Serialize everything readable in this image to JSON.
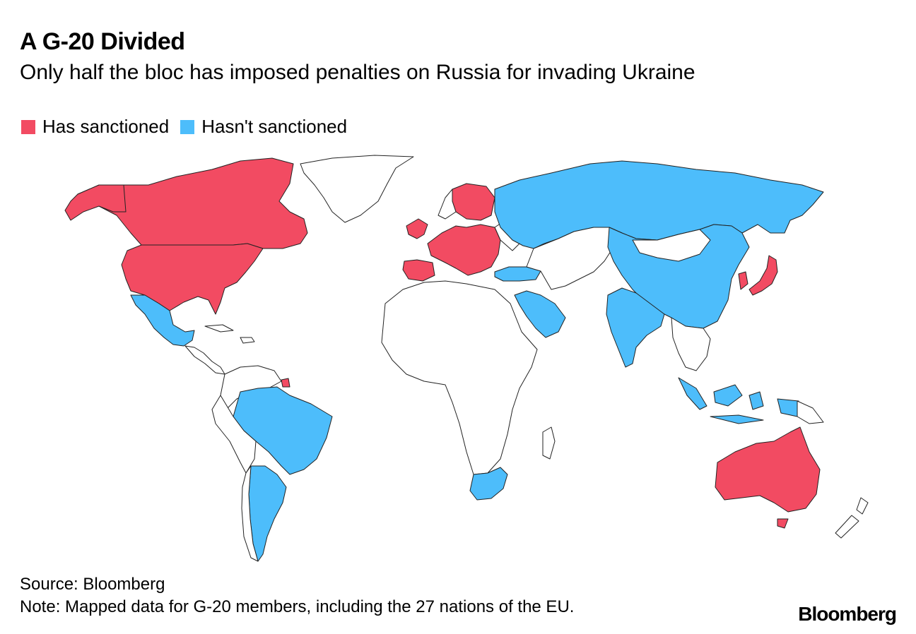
{
  "header": {
    "title": "A G-20 Divided",
    "subtitle": "Only half the bloc has imposed penalties on Russia for invading Ukraine"
  },
  "legend": [
    {
      "label": "Has sanctioned",
      "color": "#f24b62"
    },
    {
      "label": "Hasn't sanctioned",
      "color": "#4dbdfb"
    }
  ],
  "map": {
    "other_fill": "#ffffff",
    "border_color": "#222222",
    "sanctioned": [
      "Canada",
      "United States",
      "United Kingdom",
      "France",
      "Germany",
      "Italy",
      "Spain",
      "Portugal",
      "Ireland",
      "Sweden",
      "Finland",
      "Poland",
      "Netherlands",
      "Belgium",
      "Austria",
      "Czechia",
      "Slovakia",
      "Hungary",
      "Romania",
      "Bulgaria",
      "Greece",
      "Croatia",
      "Slovenia",
      "Denmark",
      "Estonia",
      "Latvia",
      "Lithuania",
      "Luxembourg",
      "Cyprus",
      "Malta",
      "French Guiana",
      "Japan",
      "South Korea",
      "Australia"
    ],
    "not_sanctioned": [
      "Mexico",
      "Brazil",
      "Argentina",
      "Russia",
      "China",
      "India",
      "Indonesia",
      "Saudi Arabia",
      "Turkey",
      "South Africa"
    ]
  },
  "footer": {
    "source": "Source: Bloomberg",
    "note": "Note: Mapped data for G-20 members, including the 27 nations of the EU.",
    "brand": "Bloomberg"
  }
}
